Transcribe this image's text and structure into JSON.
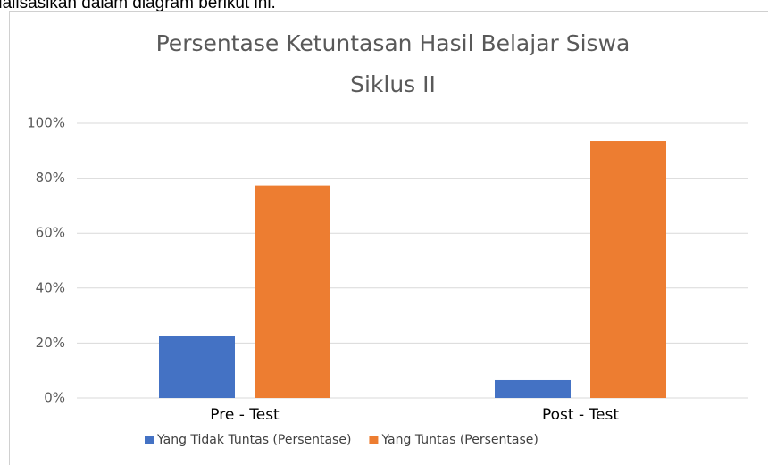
{
  "intro_text": "ualisasikan dalam diagram berikut ini.",
  "chart_data": {
    "type": "bar",
    "title": [
      "Persentase Ketuntasan Hasil Belajar Siswa",
      "Siklus II"
    ],
    "categories": [
      "Pre - Test",
      "Post - Test"
    ],
    "series": [
      {
        "name": "Yang Tidak Tuntas (Persentase)",
        "color": "#4472c4",
        "values": [
          22.6,
          6.5
        ]
      },
      {
        "name": "Yang Tuntas (Persentase)",
        "color": "#ed7d31",
        "values": [
          77.4,
          93.5
        ]
      }
    ],
    "ylim": [
      0,
      100
    ],
    "yticks": [
      {
        "value": 0,
        "label": "0%"
      },
      {
        "value": 20,
        "label": "20%"
      },
      {
        "value": 40,
        "label": "40%"
      },
      {
        "value": 60,
        "label": "60%"
      },
      {
        "value": 80,
        "label": "80%"
      },
      {
        "value": 100,
        "label": "100%"
      }
    ],
    "grid": true,
    "legend": "bottom"
  }
}
